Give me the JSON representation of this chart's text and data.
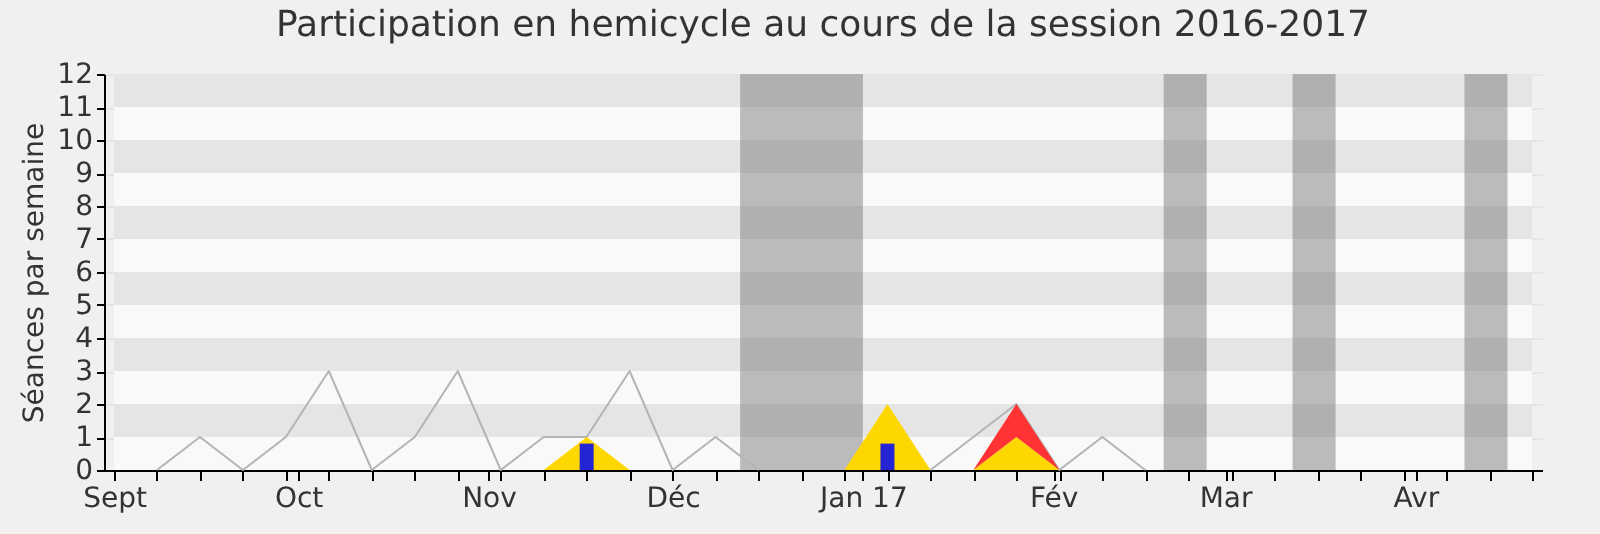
{
  "chart_data": {
    "type": "line",
    "title": "Participation en hemicycle au cours de la session 2016-2017",
    "ylabel": "Séances par semaine",
    "x": [
      "2016-09-01",
      "2016-09-08",
      "2016-09-15",
      "2016-09-22",
      "2016-09-29",
      "2016-10-06",
      "2016-10-13",
      "2016-10-20",
      "2016-10-27",
      "2016-11-03",
      "2016-11-10",
      "2016-11-17",
      "2016-11-24",
      "2016-12-01",
      "2016-12-08",
      "2016-12-15",
      "2016-12-22",
      "2016-12-29",
      "2017-01-05",
      "2017-01-12",
      "2017-01-19",
      "2017-01-26",
      "2017-02-02",
      "2017-02-09",
      "2017-02-16",
      "2017-02-23",
      "2017-03-02",
      "2017-03-09",
      "2017-03-16",
      "2017-03-23",
      "2017-03-30",
      "2017-04-06",
      "2017-04-13",
      "2017-04-20"
    ],
    "series": [
      {
        "color": "#b4b4b4",
        "values": [
          null,
          0,
          1,
          0,
          1,
          3,
          0,
          1,
          3,
          0,
          1,
          1,
          3,
          0,
          1,
          0,
          null,
          null,
          null,
          0,
          1,
          2,
          0,
          1,
          0,
          null,
          null,
          null,
          null,
          null,
          null,
          null,
          null,
          null
        ]
      },
      {
        "type": "area",
        "color": "#ffd700",
        "values": [
          0,
          0,
          0,
          0,
          0,
          0,
          0,
          0,
          0,
          0,
          0,
          1,
          0,
          0,
          0,
          0,
          0,
          0,
          2,
          0,
          0,
          1,
          0,
          0,
          0,
          0,
          0,
          0,
          0,
          0,
          0,
          0,
          0,
          0
        ]
      },
      {
        "type": "area",
        "color": "#ff3333",
        "values": [
          null,
          null,
          null,
          null,
          null,
          null,
          null,
          null,
          null,
          null,
          null,
          null,
          null,
          null,
          null,
          null,
          null,
          null,
          null,
          null,
          0,
          1,
          0,
          null,
          null,
          null,
          null,
          null,
          null,
          null,
          null,
          null,
          null,
          null
        ]
      },
      {
        "type": "bar",
        "color": "#2424d4",
        "values": [
          null,
          null,
          null,
          null,
          null,
          null,
          null,
          null,
          null,
          null,
          null,
          0.8,
          null,
          null,
          null,
          null,
          null,
          null,
          0.8,
          null,
          null,
          null,
          null,
          null,
          null,
          null,
          null,
          null,
          null,
          null,
          null,
          null,
          null,
          null
        ]
      }
    ],
    "stacked": true,
    "xlim": [
      "2016-09-01",
      "2017-04-20"
    ],
    "xticks": [
      {
        "value": "2016-09-01",
        "label": "Sept"
      },
      {
        "value": "2016-09-08",
        "label": null
      },
      {
        "value": "2016-09-15",
        "label": null
      },
      {
        "value": "2016-09-22",
        "label": null
      },
      {
        "value": "2016-09-29",
        "label": null
      },
      {
        "value": "2016-10-01",
        "label": "Oct"
      },
      {
        "value": "2016-10-06",
        "label": null
      },
      {
        "value": "2016-10-13",
        "label": null
      },
      {
        "value": "2016-10-20",
        "label": null
      },
      {
        "value": "2016-10-27",
        "label": null
      },
      {
        "value": "2016-11-01",
        "label": "Nov"
      },
      {
        "value": "2016-11-03",
        "label": null
      },
      {
        "value": "2016-11-10",
        "label": null
      },
      {
        "value": "2016-11-17",
        "label": null
      },
      {
        "value": "2016-11-24",
        "label": null
      },
      {
        "value": "2016-12-01",
        "label": "Déc"
      },
      {
        "value": "2016-12-08",
        "label": null
      },
      {
        "value": "2016-12-15",
        "label": null
      },
      {
        "value": "2016-12-22",
        "label": null
      },
      {
        "value": "2016-12-29",
        "label": null
      },
      {
        "value": "2017-01-01",
        "label": "Jan 17"
      },
      {
        "value": "2017-01-05",
        "label": null
      },
      {
        "value": "2017-01-12",
        "label": null
      },
      {
        "value": "2017-01-19",
        "label": null
      },
      {
        "value": "2017-01-26",
        "label": null
      },
      {
        "value": "2017-02-01",
        "label": "Fév"
      },
      {
        "value": "2017-02-02",
        "label": null
      },
      {
        "value": "2017-02-09",
        "label": null
      },
      {
        "value": "2017-02-16",
        "label": null
      },
      {
        "value": "2017-02-23",
        "label": null
      },
      {
        "value": "2017-03-01",
        "label": "Mar"
      },
      {
        "value": "2017-03-02",
        "label": null
      },
      {
        "value": "2017-03-09",
        "label": null
      },
      {
        "value": "2017-03-16",
        "label": null
      },
      {
        "value": "2017-03-23",
        "label": null
      },
      {
        "value": "2017-03-30",
        "label": null
      },
      {
        "value": "2017-04-01",
        "label": "Avr"
      },
      {
        "value": "2017-04-06",
        "label": null
      },
      {
        "value": "2017-04-13",
        "label": null
      },
      {
        "value": "2017-04-20",
        "label": null
      }
    ],
    "ylim": [
      0,
      12
    ],
    "yticks": [
      0,
      1,
      2,
      3,
      4,
      5,
      6,
      7,
      8,
      9,
      10,
      11,
      12
    ],
    "bands": [
      {
        "axis": "x",
        "from": "2016-12-12",
        "to": "2017-01-01",
        "color": "#6f6f6f"
      },
      {
        "axis": "x",
        "from": "2017-02-19",
        "to": "2017-02-26",
        "color": "#6f6f6f"
      },
      {
        "axis": "x",
        "from": "2017-03-12",
        "to": "2017-03-19",
        "color": "#6f6f6f"
      },
      {
        "axis": "x",
        "from": "2017-04-09",
        "to": "2017-04-16",
        "color": "#6f6f6f"
      }
    ],
    "grid": "y"
  }
}
